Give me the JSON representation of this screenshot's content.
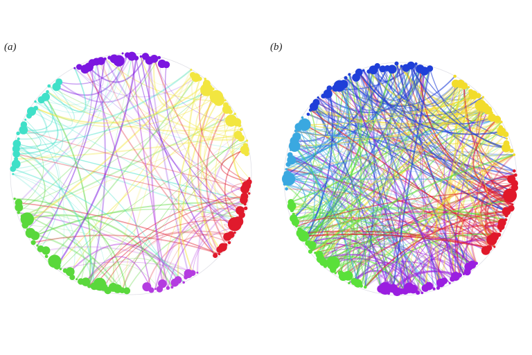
{
  "panels": [
    {
      "label": "(a)",
      "description_free": true,
      "seed": 11,
      "edge_count": 150,
      "edge_opacity": 0.35,
      "node_groups": [
        {
          "color": "#7b16e0",
          "arc_deg": [
            -118,
            -72
          ],
          "count": 22
        },
        {
          "color": "#f2e640",
          "arc_deg": [
            -60,
            -10
          ],
          "count": 26
        },
        {
          "color": "#e01a2c",
          "arc_deg": [
            2,
            44
          ],
          "count": 24
        },
        {
          "color": "#b43ce0",
          "arc_deg": [
            56,
            82
          ],
          "count": 14
        },
        {
          "color": "#5ad83c",
          "arc_deg": [
            92,
            168
          ],
          "count": 34
        },
        {
          "color": "#3fe0c8",
          "arc_deg": [
            180,
            232
          ],
          "count": 22
        }
      ]
    },
    {
      "label": "(b)",
      "seed": 29,
      "edge_count": 420,
      "edge_opacity": 0.45,
      "node_groups": [
        {
          "color": "#1f3fd8",
          "arc_deg": [
            -145,
            -75
          ],
          "count": 30
        },
        {
          "color": "#f2dc2c",
          "arc_deg": [
            -62,
            -12
          ],
          "count": 24
        },
        {
          "color": "#e0182a",
          "arc_deg": [
            -4,
            40
          ],
          "count": 22
        },
        {
          "color": "#9a1ee0",
          "arc_deg": [
            48,
            100
          ],
          "count": 26
        },
        {
          "color": "#5ae03a",
          "arc_deg": [
            108,
            168
          ],
          "count": 30
        },
        {
          "color": "#3aa8e0",
          "arc_deg": [
            175,
            212
          ],
          "count": 16
        }
      ]
    }
  ]
}
